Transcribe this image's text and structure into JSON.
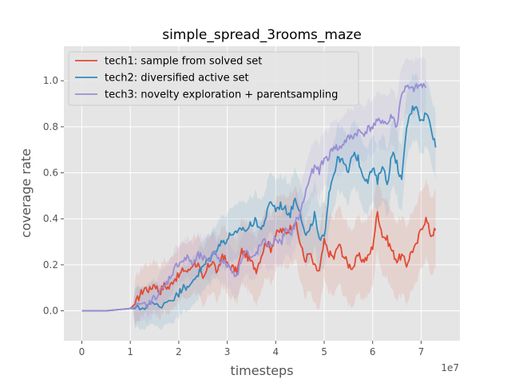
{
  "chart_data": {
    "type": "line",
    "title": "simple_spread_3rooms_maze",
    "xlabel": "timesteps",
    "ylabel": "coverage rate",
    "x_offset_label": "1e7",
    "x_scale": 10000000,
    "xlim": [
      -0.37,
      7.8
    ],
    "ylim": [
      -0.13,
      1.15
    ],
    "x_ticks": [
      0,
      1,
      2,
      3,
      4,
      5,
      6,
      7
    ],
    "x_tick_labels": [
      "0",
      "1",
      "2",
      "3",
      "4",
      "5",
      "6",
      "7"
    ],
    "y_ticks": [
      0.0,
      0.2,
      0.4,
      0.6,
      0.8,
      1.0
    ],
    "y_tick_labels": [
      "0.0",
      "0.2",
      "0.4",
      "0.6",
      "0.8",
      "1.0"
    ],
    "grid": true,
    "legend_position": "upper-left",
    "series": [
      {
        "name": "tech1: sample from solved set",
        "color": "#e24a33",
        "x": [
          0,
          0.5,
          1.0,
          1.1,
          1.2,
          1.3,
          1.4,
          1.5,
          1.6,
          1.7,
          1.8,
          1.9,
          2.0,
          2.1,
          2.2,
          2.3,
          2.4,
          2.5,
          2.6,
          2.7,
          2.8,
          2.9,
          3.0,
          3.1,
          3.2,
          3.3,
          3.4,
          3.5,
          3.6,
          3.7,
          3.8,
          3.9,
          4.0,
          4.1,
          4.2,
          4.3,
          4.4,
          4.5,
          4.6,
          4.7,
          4.8,
          4.9,
          5.0,
          5.1,
          5.2,
          5.3,
          5.4,
          5.5,
          5.6,
          5.7,
          5.8,
          5.9,
          6.0,
          6.1,
          6.2,
          6.3,
          6.4,
          6.5,
          6.6,
          6.7,
          6.8,
          6.9,
          7.0,
          7.1,
          7.2,
          7.3
        ],
        "y": [
          0.0,
          0.0,
          0.01,
          0.03,
          0.07,
          0.1,
          0.09,
          0.12,
          0.08,
          0.11,
          0.1,
          0.14,
          0.15,
          0.18,
          0.17,
          0.21,
          0.2,
          0.13,
          0.19,
          0.22,
          0.16,
          0.25,
          0.2,
          0.19,
          0.17,
          0.26,
          0.24,
          0.21,
          0.18,
          0.24,
          0.3,
          0.27,
          0.33,
          0.35,
          0.34,
          0.36,
          0.39,
          0.3,
          0.22,
          0.25,
          0.19,
          0.17,
          0.3,
          0.25,
          0.23,
          0.29,
          0.24,
          0.2,
          0.19,
          0.24,
          0.22,
          0.23,
          0.28,
          0.43,
          0.33,
          0.31,
          0.26,
          0.22,
          0.24,
          0.2,
          0.26,
          0.28,
          0.36,
          0.4,
          0.33,
          0.35
        ],
        "spread": 0.14
      },
      {
        "name": "tech2: diversified active set",
        "color": "#348abd",
        "x": [
          0,
          0.5,
          1.0,
          1.2,
          1.4,
          1.6,
          1.8,
          2.0,
          2.1,
          2.2,
          2.3,
          2.4,
          2.5,
          2.6,
          2.7,
          2.8,
          2.9,
          3.0,
          3.1,
          3.2,
          3.3,
          3.4,
          3.5,
          3.6,
          3.7,
          3.8,
          3.9,
          4.0,
          4.1,
          4.2,
          4.3,
          4.4,
          4.5,
          4.6,
          4.7,
          4.8,
          4.9,
          5.0,
          5.1,
          5.2,
          5.3,
          5.4,
          5.5,
          5.6,
          5.7,
          5.8,
          5.9,
          6.0,
          6.1,
          6.2,
          6.3,
          6.4,
          6.5,
          6.6,
          6.7,
          6.8,
          6.9,
          7.0,
          7.1,
          7.2,
          7.3
        ],
        "y": [
          0.0,
          0.0,
          0.01,
          0.01,
          0.03,
          0.02,
          0.05,
          0.07,
          0.12,
          0.09,
          0.14,
          0.16,
          0.19,
          0.22,
          0.24,
          0.28,
          0.3,
          0.31,
          0.34,
          0.33,
          0.36,
          0.35,
          0.38,
          0.39,
          0.35,
          0.41,
          0.48,
          0.44,
          0.46,
          0.44,
          0.42,
          0.49,
          0.44,
          0.33,
          0.34,
          0.42,
          0.3,
          0.32,
          0.52,
          0.6,
          0.67,
          0.64,
          0.6,
          0.69,
          0.66,
          0.59,
          0.57,
          0.62,
          0.56,
          0.64,
          0.55,
          0.69,
          0.64,
          0.56,
          0.8,
          0.87,
          0.9,
          0.82,
          0.86,
          0.81,
          0.71
        ],
        "spread": 0.12
      },
      {
        "name": "tech3: novelty exploration + parentsampling",
        "color": "#988ed5",
        "x": [
          0,
          0.5,
          1.0,
          1.2,
          1.4,
          1.5,
          1.6,
          1.7,
          1.8,
          1.9,
          2.0,
          2.1,
          2.2,
          2.3,
          2.4,
          2.5,
          2.6,
          2.7,
          2.8,
          2.9,
          3.0,
          3.1,
          3.2,
          3.3,
          3.4,
          3.5,
          3.6,
          3.7,
          3.8,
          3.9,
          4.0,
          4.1,
          4.2,
          4.3,
          4.4,
          4.5,
          4.6,
          4.7,
          4.8,
          4.9,
          5.0,
          5.1,
          5.2,
          5.3,
          5.4,
          5.5,
          5.6,
          5.7,
          5.8,
          5.9,
          6.0,
          6.1,
          6.2,
          6.3,
          6.4,
          6.5,
          6.6,
          6.7,
          6.8,
          6.9,
          7.0,
          7.1
        ],
        "y": [
          0.0,
          0.0,
          0.01,
          0.02,
          0.03,
          0.06,
          0.08,
          0.1,
          0.14,
          0.18,
          0.21,
          0.22,
          0.23,
          0.2,
          0.24,
          0.23,
          0.21,
          0.26,
          0.24,
          0.21,
          0.2,
          0.18,
          0.15,
          0.24,
          0.26,
          0.22,
          0.25,
          0.29,
          0.3,
          0.28,
          0.32,
          0.29,
          0.35,
          0.33,
          0.38,
          0.42,
          0.5,
          0.58,
          0.62,
          0.61,
          0.66,
          0.67,
          0.72,
          0.7,
          0.73,
          0.75,
          0.76,
          0.78,
          0.77,
          0.79,
          0.8,
          0.82,
          0.83,
          0.81,
          0.85,
          0.8,
          0.95,
          0.97,
          0.96,
          0.97,
          0.98,
          0.97
        ],
        "spread": 0.1
      }
    ]
  }
}
